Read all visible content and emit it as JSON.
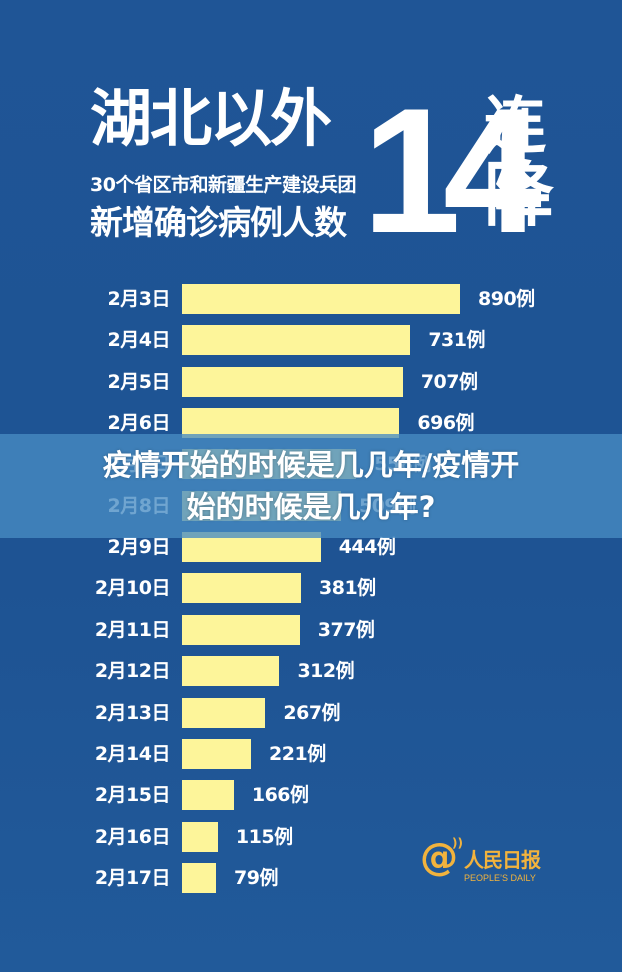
{
  "header": {
    "title_main": "湖北以外",
    "subtitle_line1": "30个省区市和新疆生产建设兵团",
    "subtitle_line2": "新增确诊病例人数",
    "big_number": "14",
    "suffix_char1": "连",
    "suffix_char2": "降"
  },
  "overlay": {
    "line1": "疫情开始的时候是几几年/疫情开",
    "line2": "始的时候是几几年?"
  },
  "logo": {
    "at_symbol": "@",
    "name_cn": "人民日报",
    "name_en": "PEOPLE’S DAILY",
    "color": "#f2b33d"
  },
  "colors": {
    "background": "#1f5494",
    "bar": "#fdf59a",
    "text": "#ffffff",
    "overlay": "#488cc3"
  },
  "chart_data": {
    "type": "bar",
    "orientation": "horizontal",
    "title": "湖北以外30个省区市和新疆生产建设兵团新增确诊病例人数14连降",
    "xlabel": "",
    "ylabel": "",
    "unit": "例",
    "categories": [
      "2月3日",
      "2月4日",
      "2月5日",
      "2月6日",
      "2月7日",
      "2月8日",
      "2月9日",
      "2月10日",
      "2月11日",
      "2月12日",
      "2月13日",
      "2月14日",
      "2月15日",
      "2月16日",
      "2月17日"
    ],
    "values": [
      890,
      731,
      707,
      696,
      558,
      509,
      444,
      381,
      377,
      312,
      267,
      221,
      166,
      115,
      79
    ],
    "labels": [
      "890例",
      "731例",
      "707例",
      "696例",
      "558例",
      "509例",
      "444例",
      "381例",
      "377例",
      "312例",
      "267例",
      "221例",
      "166例",
      "115例",
      "79例"
    ],
    "grid": false,
    "legend": false
  }
}
